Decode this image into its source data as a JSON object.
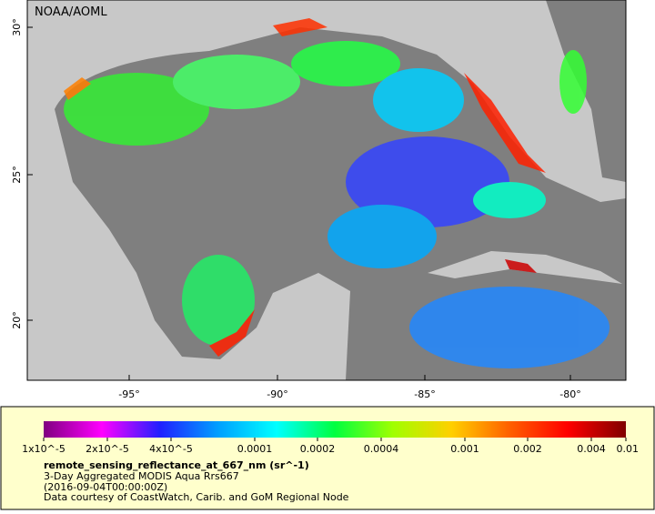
{
  "map": {
    "credit": "NOAA/AOML",
    "lat_ticks": [
      "30°",
      "25°",
      "20°"
    ],
    "lon_ticks": [
      "-95°",
      "-90°",
      "-85°",
      "-80°"
    ]
  },
  "colorbar": {
    "ticks": [
      "1x10^-5",
      "2x10^-5",
      "4x10^-5",
      "0.0001",
      "0.0002",
      "0.0004",
      "0.001",
      "0.002",
      "0.004",
      "0.01"
    ],
    "colors": [
      "#800080",
      "#ff00ff",
      "#2020ff",
      "#00a0ff",
      "#00ffff",
      "#00ff40",
      "#a0ff00",
      "#ffd000",
      "#ff6000",
      "#ff0000",
      "#800000"
    ],
    "log_scale": true
  },
  "legend": {
    "variable": "remote_sensing_reflectance_at_667_nm (sr^-1)",
    "lines": [
      "3-Day Aggregated MODIS Aqua Rrs667",
      "(2016-09-04T00:00:00Z)",
      "Data courtesy of CoastWatch, Carib. and GoM Regional Node"
    ]
  }
}
